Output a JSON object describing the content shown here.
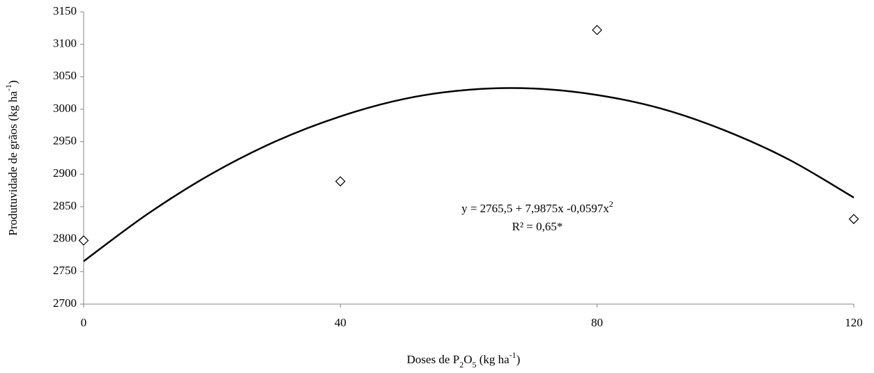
{
  "chart_data": {
    "type": "scatter",
    "x": [
      0,
      40,
      80,
      120
    ],
    "values": [
      2798,
      2889,
      3122,
      2831
    ],
    "color": "#000000",
    "trend": {
      "x": [
        0,
        10,
        20,
        30,
        40,
        50,
        60,
        70,
        80,
        90,
        100,
        110,
        120
      ],
      "values": [
        2766,
        2839,
        2901,
        2951,
        2989,
        3016,
        3030,
        3032,
        3022,
        3001,
        2967,
        2922,
        2864
      ]
    },
    "x_label": [
      "Doses de P",
      "2",
      "O",
      "5",
      " (kg ha",
      "-1",
      ")"
    ],
    "y_label": [
      "Produtuvidade  de grãos  (kg ha",
      "-1",
      ")"
    ],
    "equation": [
      "y = 2765,5 + 7,9875x -0,0597x",
      "2"
    ],
    "r_squared": "R² = 0,65*",
    "xlim": [
      0,
      120
    ],
    "xticks": [
      0,
      40,
      80,
      120
    ],
    "ylim": [
      2700,
      3150
    ],
    "yticks": [
      2700,
      2750,
      2800,
      2850,
      2900,
      2950,
      3000,
      3050,
      3100,
      3150
    ],
    "grid": false
  }
}
